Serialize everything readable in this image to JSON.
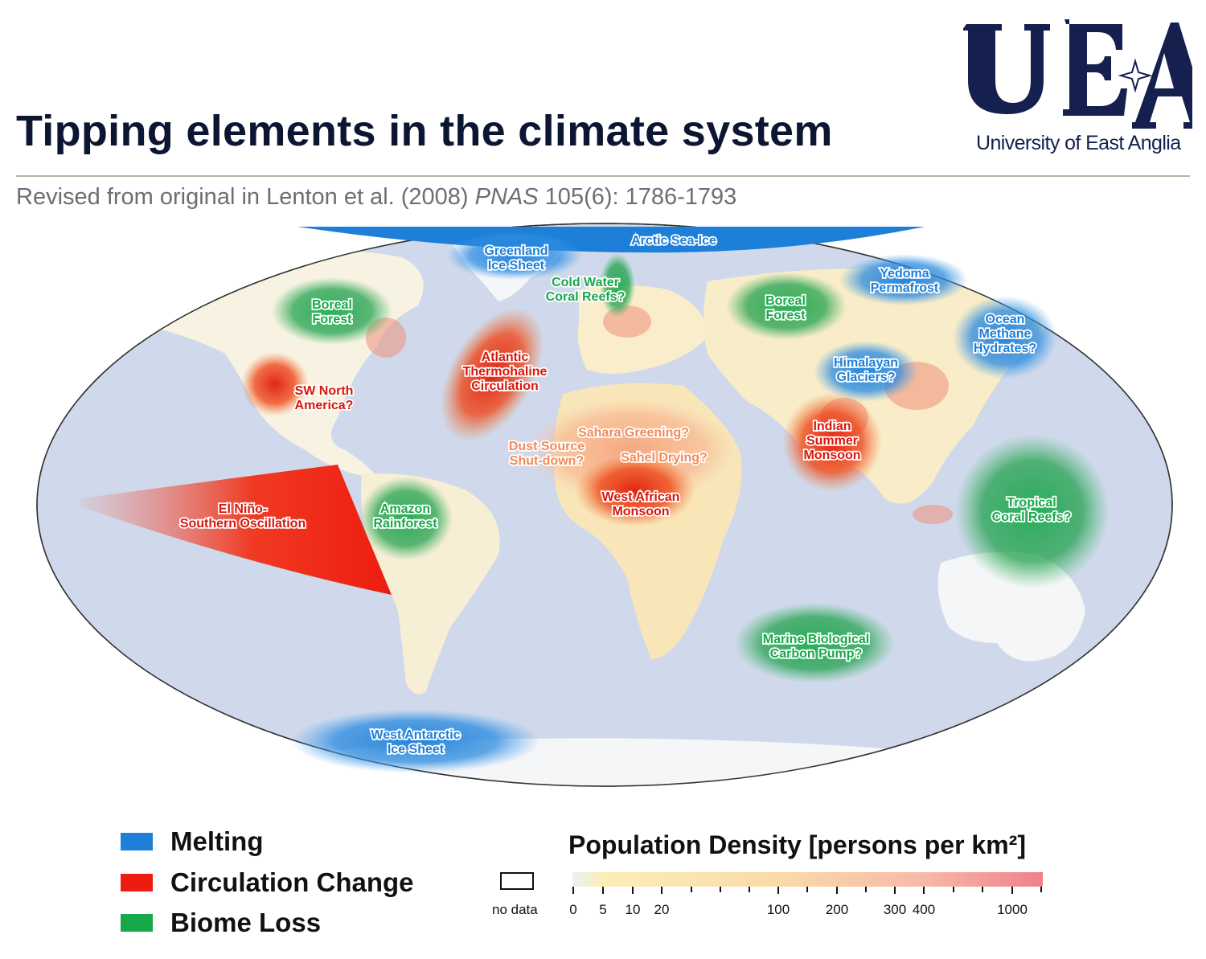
{
  "header": {
    "title": "Tipping elements in the climate system",
    "subtitle_prefix": "Revised from original in Lenton et al. (2008) ",
    "subtitle_journal": "PNAS",
    "subtitle_suffix": " 105(6): 1786-1793"
  },
  "logo": {
    "letters": "UEA",
    "name": "University of East Anglia"
  },
  "colors": {
    "melting": "#1e7fd8",
    "circulation": "#ee1c10",
    "biome": "#17a84a",
    "ocean": "#cfd9eb",
    "land": "#f5f6f8",
    "title": "#0c1633"
  },
  "map": {
    "regions": [
      {
        "id": "arctic-sea-ice",
        "category": "melting",
        "lines": [
          "Arctic Sea-Ice"
        ]
      },
      {
        "id": "greenland-ice-sheet",
        "category": "melting",
        "lines": [
          "Greenland",
          "Ice Sheet"
        ]
      },
      {
        "id": "cold-water-coral-reefs",
        "category": "biome",
        "lines": [
          "Cold Water",
          "Coral Reefs?"
        ]
      },
      {
        "id": "boreal-forest-na",
        "category": "biome",
        "lines": [
          "Boreal",
          "Forest"
        ]
      },
      {
        "id": "boreal-forest-eurasia",
        "category": "biome",
        "lines": [
          "Boreal",
          "Forest"
        ]
      },
      {
        "id": "yedoma-permafrost",
        "category": "melting",
        "lines": [
          "Yedoma",
          "Permafrost"
        ]
      },
      {
        "id": "ocean-methane-hydrates",
        "category": "melting",
        "lines": [
          "Ocean",
          "Methane",
          "Hydrates?"
        ]
      },
      {
        "id": "himalayan-glaciers",
        "category": "melting",
        "lines": [
          "Himalayan",
          "Glaciers?"
        ]
      },
      {
        "id": "atlantic-thermohaline",
        "category": "circulation",
        "lines": [
          "Atlantic",
          "Thermohaline",
          "Circulation"
        ]
      },
      {
        "id": "sw-north-america",
        "category": "circulation",
        "lines": [
          "SW North",
          "America?"
        ]
      },
      {
        "id": "sahara-greening",
        "category": "circulation",
        "lines": [
          "Sahara Greening?"
        ]
      },
      {
        "id": "dust-source",
        "category": "circulation",
        "lines": [
          "Dust Source",
          "Shut-down?"
        ]
      },
      {
        "id": "sahel-drying",
        "category": "circulation",
        "lines": [
          "Sahel Drying?"
        ]
      },
      {
        "id": "west-african-monsoon",
        "category": "circulation",
        "lines": [
          "West African",
          "Monsoon"
        ]
      },
      {
        "id": "indian-summer-monsoon",
        "category": "circulation",
        "lines": [
          "Indian",
          "Summer",
          "Monsoon"
        ]
      },
      {
        "id": "el-nino",
        "category": "circulation",
        "lines": [
          "El Niño-",
          "Southern Oscillation"
        ]
      },
      {
        "id": "amazon-rainforest",
        "category": "biome",
        "lines": [
          "Amazon",
          "Rainforest"
        ]
      },
      {
        "id": "tropical-coral-reefs",
        "category": "biome",
        "lines": [
          "Tropical",
          "Coral Reefs?"
        ]
      },
      {
        "id": "marine-carbon-pump",
        "category": "biome",
        "lines": [
          "Marine Biological",
          "Carbon Pump?"
        ]
      },
      {
        "id": "west-antarctic-ice-sheet",
        "category": "melting",
        "lines": [
          "West Antarctic",
          "Ice Sheet"
        ]
      }
    ]
  },
  "legend": {
    "melting": "Melting",
    "circulation": "Circulation Change",
    "biome": "Biome Loss"
  },
  "population": {
    "title": "Population Density [persons per km²]",
    "no_data": "no data",
    "ticks": [
      "0",
      "5",
      "10",
      "20",
      "100",
      "200",
      "300",
      "400",
      "1000"
    ]
  }
}
